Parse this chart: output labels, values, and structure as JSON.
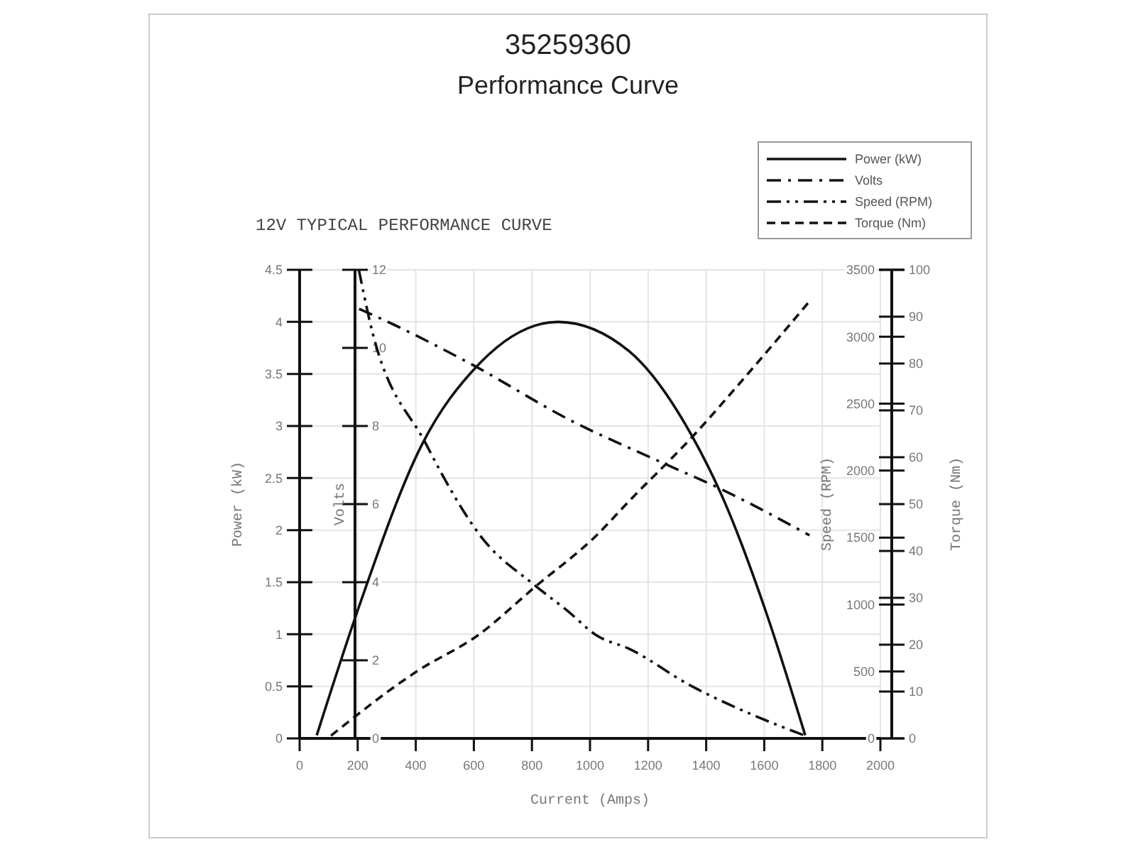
{
  "chart_data": [
    {
      "type": "line",
      "title": "35259360",
      "subtitle": "Performance Curve",
      "annotations": [
        "12V TYPICAL PERFORMANCE CURVE"
      ],
      "xlabel": "Current (Amps)",
      "ylabel": "Power (kW)",
      "xlim": [
        0,
        2000
      ],
      "xticks": [
        0,
        200,
        400,
        600,
        800,
        1000,
        1200,
        1400,
        1600,
        1800,
        2000
      ],
      "ylim": [
        0,
        4.5
      ],
      "yticks": [
        0,
        0.5,
        1,
        1.5,
        2,
        2.5,
        3,
        3.5,
        4,
        4.5
      ],
      "grid": true,
      "legend": "top right",
      "series": [
        {
          "name": "Power (kW)",
          "color": "#111111",
          "line_style": "solid",
          "x": [
            59,
            205,
            421,
            616,
            890,
            1134,
            1350,
            1462,
            1609,
            1741
          ],
          "values": [
            0.03,
            1.27,
            2.82,
            3.59,
            4.0,
            3.72,
            2.91,
            2.28,
            1.19,
            0.03
          ]
        }
      ]
    },
    {
      "type": "line",
      "ylabel": "Volts",
      "tick_labels": "y",
      "legend": "top right",
      "xlim": [
        0,
        2000
      ],
      "ylim": [
        0,
        12
      ],
      "yticks": [
        0,
        2,
        4,
        6,
        8,
        10,
        12
      ],
      "series": [
        {
          "name": "Volts",
          "color": "#111111",
          "line_style": "dashdot",
          "x": [
            205,
            323,
            597,
            924,
            1252,
            1447,
            1756
          ],
          "values": [
            11.0,
            10.6,
            9.56,
            8.18,
            7.05,
            6.4,
            5.2
          ]
        }
      ]
    },
    {
      "type": "line",
      "ylabel": "Speed (RPM)",
      "tick_labels": "y",
      "legend": "top right",
      "xlim": [
        0,
        2000
      ],
      "ylim": [
        0,
        3500
      ],
      "yticks": [
        0,
        500,
        1000,
        1500,
        2000,
        2500,
        3000,
        3500
      ],
      "series": [
        {
          "name": "Speed (RPM)",
          "color": "#111111",
          "line_style": "dashdotdot",
          "x": [
            204,
            240,
            435,
            631,
            812,
            924,
            1022,
            1134,
            1350,
            1545,
            1741
          ],
          "values": [
            3500,
            3130,
            2200,
            1490,
            1140,
            950,
            770,
            670,
            390,
            190,
            20
          ]
        }
      ]
    },
    {
      "type": "line",
      "ylabel": "Torque (Nm)",
      "tick_labels": "y",
      "legend": "top right",
      "xlim": [
        0,
        2000
      ],
      "ylim": [
        0,
        100
      ],
      "yticks": [
        0,
        10,
        20,
        30,
        40,
        50,
        60,
        70,
        80,
        90,
        100
      ],
      "series": [
        {
          "name": "Torque (Nm)",
          "color": "#111111",
          "line_style": "dashed",
          "x": [
            108,
            401,
            616,
            812,
            1022,
            1134,
            1350,
            1545,
            1756
          ],
          "values": [
            0.6,
            14.2,
            22.1,
            32.4,
            43.3,
            50.6,
            64.2,
            77.9,
            93.3
          ]
        }
      ]
    }
  ]
}
